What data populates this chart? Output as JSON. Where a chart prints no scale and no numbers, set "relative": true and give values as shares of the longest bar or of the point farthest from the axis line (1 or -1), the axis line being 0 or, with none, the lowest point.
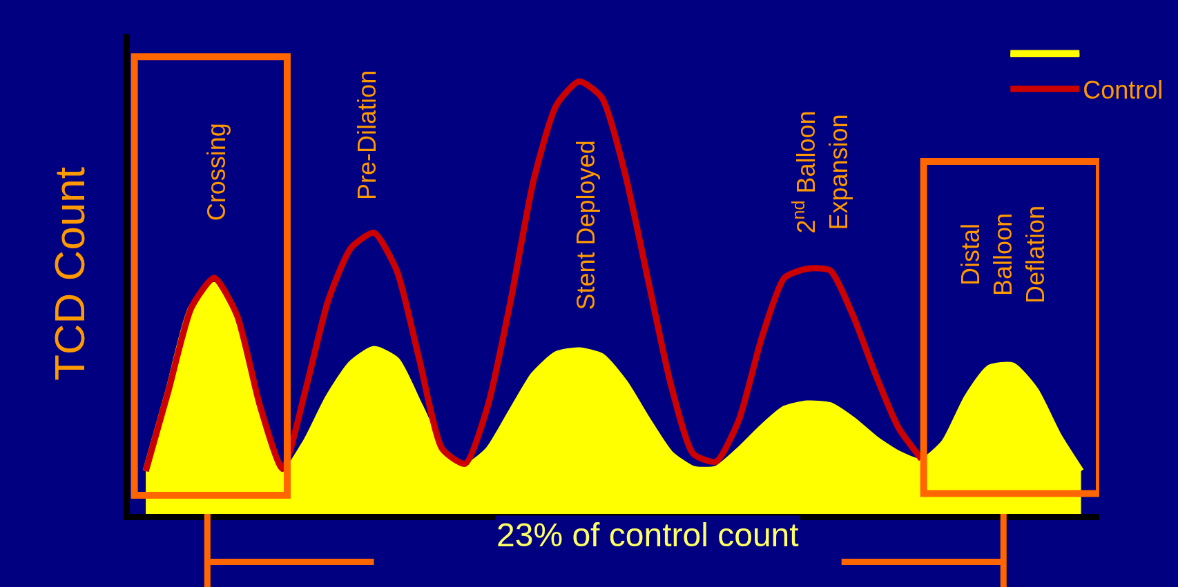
{
  "chart_data": {
    "type": "line",
    "relative": true,
    "ylabel": "TCD Count",
    "legend": "top right",
    "grid": false,
    "marker": "none",
    "categories": [
      null,
      null,
      null,
      null,
      null,
      null,
      null,
      null,
      null,
      null,
      null,
      null,
      null,
      null,
      null,
      null,
      null,
      null,
      null,
      null,
      null,
      null,
      null,
      null,
      null,
      null,
      null,
      null,
      null,
      null,
      null,
      null,
      null,
      null,
      null,
      null,
      null,
      null,
      null,
      null,
      null,
      null
    ],
    "series": [
      {
        "name": "Control",
        "color": "#cc0000",
        "values": [
          0.099,
          0.286,
          0.477,
          0.546,
          0.459,
          0.251,
          0.104,
          0.286,
          0.494,
          0.615,
          0.65,
          0.563,
          0.355,
          0.15,
          0.116,
          0.251,
          0.494,
          0.771,
          0.945,
          1.0,
          0.962,
          0.789,
          0.546,
          0.303,
          0.139,
          0.121,
          0.217,
          0.407,
          0.546,
          0.567,
          0.563,
          0.459,
          0.321,
          0.199,
          0.127,
          null,
          null,
          null,
          null,
          null,
          null,
          null
        ]
      },
      {
        "color": "#ffff00",
        "type": "area",
        "values": [
          0.099,
          0.286,
          0.477,
          0.529,
          0.451,
          0.243,
          0.092,
          0.165,
          0.269,
          0.347,
          0.381,
          0.355,
          0.251,
          0.147,
          0.109,
          0.147,
          0.234,
          0.321,
          0.369,
          0.378,
          0.364,
          0.303,
          0.217,
          0.139,
          0.104,
          0.104,
          0.147,
          0.199,
          0.243,
          0.255,
          0.251,
          0.217,
          0.173,
          0.139,
          0.121,
          0.165,
          0.269,
          0.338,
          0.343,
          0.286,
          0.182,
          0.099
        ]
      }
    ],
    "annotations": [
      "Crossing",
      "Pre-Dilation",
      "Stent Deployed",
      "2$^{nd}$ Balloon\nExpansion",
      "Distal\nBalloon\nDeflation",
      "23% of control count"
    ]
  }
}
